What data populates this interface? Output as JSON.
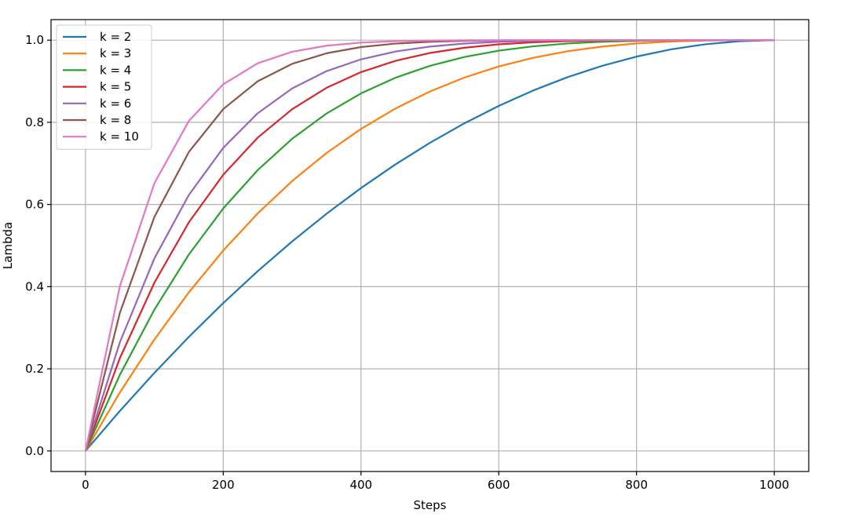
{
  "chart_data": {
    "type": "line",
    "title": "",
    "xlabel": "Steps",
    "ylabel": "Lambda",
    "xlim": [
      -50,
      1050
    ],
    "ylim": [
      -0.05,
      1.05
    ],
    "xticks": [
      0,
      200,
      400,
      600,
      800,
      1000
    ],
    "yticks": [
      0.0,
      0.2,
      0.4,
      0.6,
      0.8,
      1.0
    ],
    "xtick_labels": [
      "0",
      "200",
      "400",
      "600",
      "800",
      "1000"
    ],
    "ytick_labels": [
      "0.0",
      "0.2",
      "0.4",
      "0.6",
      "0.8",
      "1.0"
    ],
    "grid": true,
    "legend_position": "top-left",
    "x": [
      0,
      50,
      100,
      150,
      200,
      250,
      300,
      350,
      400,
      450,
      500,
      550,
      600,
      650,
      700,
      750,
      800,
      850,
      900,
      950,
      1000
    ],
    "series": [
      {
        "name": "k = 2",
        "color": "#1f77b4",
        "values": [
          0,
          0.0975,
          0.19,
          0.2775,
          0.36,
          0.4375,
          0.51,
          0.5775,
          0.64,
          0.6975,
          0.75,
          0.7975,
          0.84,
          0.8775,
          0.91,
          0.9375,
          0.96,
          0.9775,
          0.99,
          0.9975,
          1.0
        ]
      },
      {
        "name": "k = 3",
        "color": "#ff7f0e",
        "values": [
          0,
          0.1426,
          0.271,
          0.3859,
          0.488,
          0.5781,
          0.657,
          0.7254,
          0.784,
          0.8336,
          0.875,
          0.9089,
          0.936,
          0.9571,
          0.973,
          0.9844,
          0.992,
          0.9966,
          0.999,
          0.9999,
          1.0
        ]
      },
      {
        "name": "k = 4",
        "color": "#2ca02c",
        "values": [
          0,
          0.1855,
          0.3439,
          0.478,
          0.5904,
          0.6836,
          0.7599,
          0.8215,
          0.8704,
          0.9085,
          0.9375,
          0.959,
          0.9744,
          0.985,
          0.9919,
          0.9961,
          0.9984,
          0.9995,
          0.9999,
          1.0,
          1.0
        ]
      },
      {
        "name": "k = 5",
        "color": "#d62728",
        "values": [
          0,
          0.2262,
          0.4095,
          0.5563,
          0.6723,
          0.7627,
          0.8319,
          0.884,
          0.9222,
          0.9497,
          0.9688,
          0.9815,
          0.9898,
          0.9947,
          0.9976,
          0.999,
          0.9997,
          0.9999,
          1.0,
          1.0,
          1.0
        ]
      },
      {
        "name": "k = 6",
        "color": "#9467bd",
        "values": [
          0,
          0.2649,
          0.4686,
          0.6229,
          0.7379,
          0.822,
          0.8824,
          0.9246,
          0.9533,
          0.9723,
          0.9844,
          0.9917,
          0.9959,
          0.9982,
          0.9993,
          0.9998,
          0.9999,
          1.0,
          1.0,
          1.0,
          1.0
        ]
      },
      {
        "name": "k = 8",
        "color": "#8c564b",
        "values": [
          0,
          0.3366,
          0.5695,
          0.7275,
          0.8322,
          0.8999,
          0.9424,
          0.9681,
          0.9832,
          0.9916,
          0.9961,
          0.9983,
          0.9993,
          0.9998,
          0.9999,
          1.0,
          1.0,
          1.0,
          1.0,
          1.0,
          1.0
        ]
      },
      {
        "name": "k = 10",
        "color": "#e377c2",
        "values": [
          0,
          0.4013,
          0.6513,
          0.8031,
          0.8926,
          0.9437,
          0.9718,
          0.9865,
          0.994,
          0.9975,
          0.999,
          0.9997,
          0.9999,
          1.0,
          1.0,
          1.0,
          1.0,
          1.0,
          1.0,
          1.0,
          1.0
        ]
      }
    ]
  }
}
